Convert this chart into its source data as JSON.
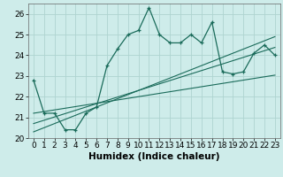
{
  "xlabel": "Humidex (Indice chaleur)",
  "background_color": "#ceecea",
  "line_color": "#1a6b5a",
  "grid_color": "#aed4d0",
  "x_values": [
    0,
    1,
    2,
    3,
    4,
    5,
    6,
    7,
    8,
    9,
    10,
    11,
    12,
    13,
    14,
    15,
    16,
    17,
    18,
    19,
    20,
    21,
    22,
    23
  ],
  "y_main": [
    22.8,
    21.2,
    21.2,
    20.4,
    20.4,
    21.2,
    21.5,
    23.5,
    24.3,
    25.0,
    25.2,
    26.3,
    25.0,
    24.6,
    24.6,
    25.0,
    24.6,
    25.6,
    23.2,
    23.1,
    23.2,
    24.1,
    24.5,
    24.0
  ],
  "y_linear1": [
    21.2,
    21.28,
    21.36,
    21.44,
    21.52,
    21.6,
    21.68,
    21.76,
    21.84,
    21.92,
    22.0,
    22.08,
    22.16,
    22.24,
    22.32,
    22.4,
    22.48,
    22.56,
    22.64,
    22.72,
    22.8,
    22.88,
    22.96,
    23.04
  ],
  "y_linear2": [
    20.7,
    20.86,
    21.02,
    21.18,
    21.34,
    21.5,
    21.66,
    21.82,
    21.98,
    22.14,
    22.3,
    22.46,
    22.62,
    22.78,
    22.94,
    23.1,
    23.26,
    23.42,
    23.58,
    23.74,
    23.9,
    24.06,
    24.22,
    24.38
  ],
  "y_linear3": [
    20.3,
    20.5,
    20.7,
    20.9,
    21.1,
    21.3,
    21.5,
    21.7,
    21.9,
    22.1,
    22.3,
    22.5,
    22.7,
    22.9,
    23.1,
    23.3,
    23.5,
    23.7,
    23.9,
    24.1,
    24.3,
    24.5,
    24.7,
    24.9
  ],
  "ylim": [
    20,
    26.5
  ],
  "xlim": [
    -0.5,
    23.5
  ],
  "yticks": [
    20,
    21,
    22,
    23,
    24,
    25,
    26
  ],
  "xticks": [
    0,
    1,
    2,
    3,
    4,
    5,
    6,
    7,
    8,
    9,
    10,
    11,
    12,
    13,
    14,
    15,
    16,
    17,
    18,
    19,
    20,
    21,
    22,
    23
  ],
  "tick_fontsize": 6.5,
  "xlabel_fontsize": 7.5
}
